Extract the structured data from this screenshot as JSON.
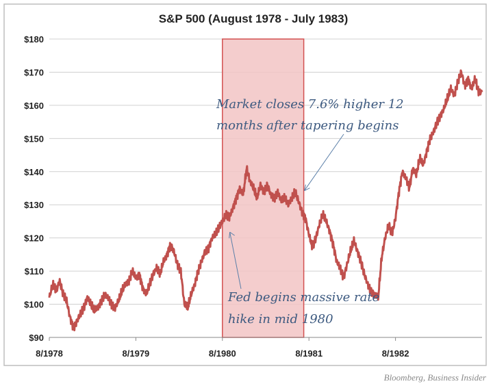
{
  "chart_data": {
    "type": "line",
    "title": "S&P 500 (August 1978 - July 1983)",
    "xlabel": "",
    "ylabel": "",
    "ylim": [
      90,
      180
    ],
    "xlim": [
      1978.58,
      1983.58
    ],
    "grid": true,
    "y_ticks": [
      90,
      100,
      110,
      120,
      130,
      140,
      150,
      160,
      170,
      180
    ],
    "y_tick_labels": [
      "$90",
      "$100",
      "$110",
      "$120",
      "$130",
      "$140",
      "$150",
      "$160",
      "$170",
      "$180"
    ],
    "x_ticks": [
      1978.58,
      1979.58,
      1980.58,
      1981.58,
      1982.58
    ],
    "x_tick_labels": [
      "8/1978",
      "8/1979",
      "8/1980",
      "8/1981",
      "8/1982"
    ],
    "shaded_region": {
      "x_start": 1980.58,
      "x_end": 1981.52,
      "y_start": 90,
      "y_end": 180,
      "color": "#f2c4c4",
      "border": "#d25050"
    },
    "series": [
      {
        "name": "S&P 500",
        "color": "#c0504d",
        "x": [
          1978.58,
          1978.62,
          1978.66,
          1978.7,
          1978.74,
          1978.78,
          1978.82,
          1978.86,
          1978.9,
          1978.94,
          1978.98,
          1979.02,
          1979.06,
          1979.1,
          1979.14,
          1979.18,
          1979.22,
          1979.26,
          1979.3,
          1979.34,
          1979.38,
          1979.42,
          1979.46,
          1979.5,
          1979.54,
          1979.58,
          1979.62,
          1979.66,
          1979.7,
          1979.74,
          1979.78,
          1979.82,
          1979.86,
          1979.9,
          1979.94,
          1979.98,
          1980.02,
          1980.06,
          1980.1,
          1980.14,
          1980.18,
          1980.22,
          1980.26,
          1980.3,
          1980.34,
          1980.38,
          1980.42,
          1980.46,
          1980.5,
          1980.54,
          1980.58,
          1980.62,
          1980.66,
          1980.7,
          1980.74,
          1980.78,
          1980.82,
          1980.86,
          1980.9,
          1980.94,
          1980.98,
          1981.02,
          1981.06,
          1981.1,
          1981.14,
          1981.18,
          1981.22,
          1981.26,
          1981.3,
          1981.34,
          1981.38,
          1981.42,
          1981.46,
          1981.5,
          1981.54,
          1981.58,
          1981.62,
          1981.66,
          1981.7,
          1981.74,
          1981.78,
          1981.82,
          1981.86,
          1981.9,
          1981.94,
          1981.98,
          1982.02,
          1982.06,
          1982.1,
          1982.14,
          1982.18,
          1982.22,
          1982.26,
          1982.3,
          1982.34,
          1982.38,
          1982.42,
          1982.46,
          1982.5,
          1982.54,
          1982.58,
          1982.62,
          1982.66,
          1982.7,
          1982.74,
          1982.78,
          1982.82,
          1982.86,
          1982.9,
          1982.94,
          1982.98,
          1983.02,
          1983.06,
          1983.1,
          1983.14,
          1983.18,
          1983.22,
          1983.26,
          1983.3,
          1983.34,
          1983.38,
          1983.42,
          1983.46,
          1983.5,
          1983.54,
          1983.58
        ],
        "values": [
          102,
          106,
          104,
          107,
          103,
          101,
          96,
          93,
          95,
          97,
          99,
          102,
          100,
          98,
          99,
          101,
          103,
          102,
          100,
          99,
          101,
          104,
          106,
          107,
          110,
          108,
          109,
          105,
          103,
          106,
          109,
          111,
          109,
          113,
          115,
          118,
          116,
          112,
          110,
          100,
          99,
          103,
          106,
          110,
          113,
          116,
          117,
          120,
          121,
          123,
          125,
          127,
          126,
          129,
          132,
          135,
          133,
          141,
          137,
          135,
          132,
          136,
          134,
          136,
          133,
          132,
          134,
          131,
          132,
          130,
          132,
          134,
          131,
          128,
          126,
          121,
          117,
          120,
          124,
          127,
          125,
          122,
          118,
          113,
          111,
          108,
          112,
          116,
          119,
          116,
          113,
          109,
          106,
          104,
          103,
          102,
          114,
          120,
          124,
          121,
          126,
          134,
          140,
          138,
          135,
          141,
          139,
          144,
          142,
          146,
          150,
          152,
          155,
          157,
          159,
          162,
          165,
          163,
          167,
          170,
          166,
          168,
          165,
          168,
          164,
          164
        ]
      }
    ],
    "annotations": [
      {
        "lines": [
          "Market closes 7.6% higher 12",
          "months after tapering begins"
        ],
        "arrow_to": {
          "x": 1981.55,
          "y": 133
        }
      },
      {
        "lines": [
          "Fed begins massive rate",
          "hike in mid 1980"
        ],
        "arrow_to": {
          "x": 1980.65,
          "y": 123
        }
      }
    ],
    "source": "Bloomberg, Business Insider"
  }
}
